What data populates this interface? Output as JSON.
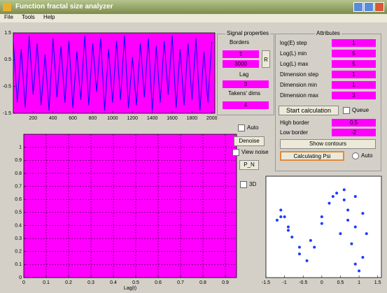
{
  "window": {
    "title": "Function fractal size analyzer",
    "menu": [
      "File",
      "Tools",
      "Help"
    ]
  },
  "signal_panel": {
    "title": "Signal properties",
    "borders_label": "Borders",
    "border_min": 1,
    "border_max": 3000,
    "reset_button": "R",
    "lag_label": "Lag",
    "lag": 3,
    "dims_label": "Takens' dims",
    "dims": 4
  },
  "attributes_panel": {
    "title": "Attributes",
    "fields": [
      {
        "label": "log(E) step",
        "value": 1
      },
      {
        "label": "Log(L) min",
        "value": 5
      },
      {
        "label": "Log(L) max",
        "value": 5
      },
      {
        "label": "Dimension step",
        "value": 1
      },
      {
        "label": "Dimension min",
        "value": 1
      },
      {
        "label": "Dimension max",
        "value": 3
      }
    ],
    "start_button": "Start calculation",
    "queue_checkbox": "Queue",
    "high_border": {
      "label": "High border",
      "value": 0.5
    },
    "low_border": {
      "label": "Low border",
      "value": -2
    },
    "contours_button": "Show contours",
    "psi_button": "Calculating Psi",
    "auto_radio": "Auto"
  },
  "controls": {
    "auto_checkbox": "Auto",
    "denoise_button": "Denoise",
    "view_noise_checkbox": "View noise",
    "pn_button": "P_N",
    "threed_checkbox": "3D"
  },
  "chart_data": [
    {
      "type": "line",
      "color": "#0000ff",
      "background": "#ff00ff",
      "x": [
        0,
        40,
        80,
        120,
        160,
        200,
        240,
        280,
        320,
        360,
        400,
        440,
        480,
        520,
        560,
        600,
        640,
        680,
        720,
        760,
        800,
        840,
        880,
        920,
        960,
        1000,
        1040,
        1080,
        1120,
        1160,
        1200,
        1240,
        1280,
        1320,
        1360,
        1400,
        1440,
        1480,
        1520,
        1560,
        1600,
        1640,
        1680,
        1720,
        1760,
        1800,
        1840,
        1880,
        1920,
        1960,
        2000
      ],
      "values": [
        1.2,
        -1.1,
        0.9,
        -1.3,
        1.4,
        -0.8,
        1.1,
        -1.2,
        0.7,
        -1.4,
        1.3,
        -0.9,
        1.0,
        -1.1,
        1.2,
        -1.3,
        0.8,
        -1.0,
        1.4,
        -1.2,
        1.1,
        -0.7,
        1.3,
        -1.4,
        0.9,
        -1.1,
        1.2,
        -1.0,
        1.4,
        -1.3,
        0.6,
        -1.2,
        1.1,
        -0.9,
        1.3,
        -1.4,
        1.0,
        -1.1,
        1.2,
        -0.8,
        1.4,
        -1.3,
        0.9,
        -1.2,
        1.1,
        -1.0,
        1.3,
        -1.4,
        0.8,
        -1.1,
        1.2
      ],
      "xlim": [
        0,
        2030
      ],
      "xticks": [
        200,
        400,
        600,
        800,
        1000,
        1200,
        1400,
        1600,
        1800,
        2000
      ],
      "ylim": [
        -1.5,
        1.5
      ],
      "yticks": [
        -1.5,
        -0.5,
        0.5,
        1.5
      ],
      "grid": false
    },
    {
      "type": "line",
      "background": "#ff00ff",
      "xlabel": "Lag(t)",
      "xlim": [
        0,
        0.95
      ],
      "xticks": [
        0,
        0.1,
        0.2,
        0.3,
        0.4,
        0.5,
        0.6,
        0.7,
        0.8,
        0.9
      ],
      "ylim": [
        0,
        1.1
      ],
      "yticks": [
        0,
        0.1,
        0.2,
        0.3,
        0.4,
        0.5,
        0.6,
        0.7,
        0.8,
        0.9,
        1
      ],
      "grid": true
    },
    {
      "type": "scatter",
      "color": "#1a3cff",
      "background": "#ffffff",
      "x": [
        -1.2,
        -1.1,
        -1.0,
        -0.9,
        -0.8,
        -0.6,
        -0.4,
        -0.2,
        0,
        0.2,
        0.4,
        0.6,
        0.7,
        0.8,
        0.9,
        1.0,
        1.1,
        1.2,
        1.1,
        0.9,
        0.6,
        0.3,
        0,
        -0.3,
        -0.6,
        -0.9,
        -1.1,
        0.5,
        0.7,
        0.9
      ],
      "values": [
        0.2,
        0.5,
        0.3,
        0.0,
        -0.3,
        -0.8,
        -1.0,
        -0.6,
        0.1,
        0.7,
        1.0,
        0.8,
        0.2,
        -0.5,
        -1.1,
        -1.3,
        -0.9,
        -0.2,
        0.4,
        0.9,
        1.1,
        0.9,
        0.3,
        -0.4,
        -0.6,
        -0.1,
        0.3,
        -0.2,
        0.5,
        0.0
      ],
      "xlim": [
        -1.5,
        1.6
      ],
      "xticks": [
        -1.5,
        -1,
        -0.5,
        0,
        0.5,
        1,
        1.5
      ],
      "ylim": [
        -1.5,
        1.5
      ],
      "grid": false
    }
  ]
}
